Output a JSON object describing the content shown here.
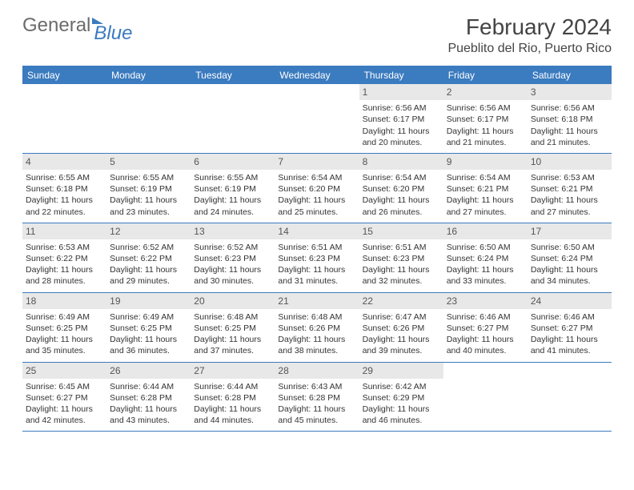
{
  "logo": {
    "part1": "General",
    "part2": "Blue"
  },
  "title": "February 2024",
  "location": "Pueblito del Rio, Puerto Rico",
  "colors": {
    "accent": "#3b7bbf",
    "daynum_bg": "#e8e8e8",
    "text": "#333333"
  },
  "weekdays": [
    "Sunday",
    "Monday",
    "Tuesday",
    "Wednesday",
    "Thursday",
    "Friday",
    "Saturday"
  ],
  "weeks": [
    [
      null,
      null,
      null,
      null,
      {
        "n": "1",
        "sunrise": "Sunrise: 6:56 AM",
        "sunset": "Sunset: 6:17 PM",
        "d1": "Daylight: 11 hours",
        "d2": "and 20 minutes."
      },
      {
        "n": "2",
        "sunrise": "Sunrise: 6:56 AM",
        "sunset": "Sunset: 6:17 PM",
        "d1": "Daylight: 11 hours",
        "d2": "and 21 minutes."
      },
      {
        "n": "3",
        "sunrise": "Sunrise: 6:56 AM",
        "sunset": "Sunset: 6:18 PM",
        "d1": "Daylight: 11 hours",
        "d2": "and 21 minutes."
      }
    ],
    [
      {
        "n": "4",
        "sunrise": "Sunrise: 6:55 AM",
        "sunset": "Sunset: 6:18 PM",
        "d1": "Daylight: 11 hours",
        "d2": "and 22 minutes."
      },
      {
        "n": "5",
        "sunrise": "Sunrise: 6:55 AM",
        "sunset": "Sunset: 6:19 PM",
        "d1": "Daylight: 11 hours",
        "d2": "and 23 minutes."
      },
      {
        "n": "6",
        "sunrise": "Sunrise: 6:55 AM",
        "sunset": "Sunset: 6:19 PM",
        "d1": "Daylight: 11 hours",
        "d2": "and 24 minutes."
      },
      {
        "n": "7",
        "sunrise": "Sunrise: 6:54 AM",
        "sunset": "Sunset: 6:20 PM",
        "d1": "Daylight: 11 hours",
        "d2": "and 25 minutes."
      },
      {
        "n": "8",
        "sunrise": "Sunrise: 6:54 AM",
        "sunset": "Sunset: 6:20 PM",
        "d1": "Daylight: 11 hours",
        "d2": "and 26 minutes."
      },
      {
        "n": "9",
        "sunrise": "Sunrise: 6:54 AM",
        "sunset": "Sunset: 6:21 PM",
        "d1": "Daylight: 11 hours",
        "d2": "and 27 minutes."
      },
      {
        "n": "10",
        "sunrise": "Sunrise: 6:53 AM",
        "sunset": "Sunset: 6:21 PM",
        "d1": "Daylight: 11 hours",
        "d2": "and 27 minutes."
      }
    ],
    [
      {
        "n": "11",
        "sunrise": "Sunrise: 6:53 AM",
        "sunset": "Sunset: 6:22 PM",
        "d1": "Daylight: 11 hours",
        "d2": "and 28 minutes."
      },
      {
        "n": "12",
        "sunrise": "Sunrise: 6:52 AM",
        "sunset": "Sunset: 6:22 PM",
        "d1": "Daylight: 11 hours",
        "d2": "and 29 minutes."
      },
      {
        "n": "13",
        "sunrise": "Sunrise: 6:52 AM",
        "sunset": "Sunset: 6:23 PM",
        "d1": "Daylight: 11 hours",
        "d2": "and 30 minutes."
      },
      {
        "n": "14",
        "sunrise": "Sunrise: 6:51 AM",
        "sunset": "Sunset: 6:23 PM",
        "d1": "Daylight: 11 hours",
        "d2": "and 31 minutes."
      },
      {
        "n": "15",
        "sunrise": "Sunrise: 6:51 AM",
        "sunset": "Sunset: 6:23 PM",
        "d1": "Daylight: 11 hours",
        "d2": "and 32 minutes."
      },
      {
        "n": "16",
        "sunrise": "Sunrise: 6:50 AM",
        "sunset": "Sunset: 6:24 PM",
        "d1": "Daylight: 11 hours",
        "d2": "and 33 minutes."
      },
      {
        "n": "17",
        "sunrise": "Sunrise: 6:50 AM",
        "sunset": "Sunset: 6:24 PM",
        "d1": "Daylight: 11 hours",
        "d2": "and 34 minutes."
      }
    ],
    [
      {
        "n": "18",
        "sunrise": "Sunrise: 6:49 AM",
        "sunset": "Sunset: 6:25 PM",
        "d1": "Daylight: 11 hours",
        "d2": "and 35 minutes."
      },
      {
        "n": "19",
        "sunrise": "Sunrise: 6:49 AM",
        "sunset": "Sunset: 6:25 PM",
        "d1": "Daylight: 11 hours",
        "d2": "and 36 minutes."
      },
      {
        "n": "20",
        "sunrise": "Sunrise: 6:48 AM",
        "sunset": "Sunset: 6:25 PM",
        "d1": "Daylight: 11 hours",
        "d2": "and 37 minutes."
      },
      {
        "n": "21",
        "sunrise": "Sunrise: 6:48 AM",
        "sunset": "Sunset: 6:26 PM",
        "d1": "Daylight: 11 hours",
        "d2": "and 38 minutes."
      },
      {
        "n": "22",
        "sunrise": "Sunrise: 6:47 AM",
        "sunset": "Sunset: 6:26 PM",
        "d1": "Daylight: 11 hours",
        "d2": "and 39 minutes."
      },
      {
        "n": "23",
        "sunrise": "Sunrise: 6:46 AM",
        "sunset": "Sunset: 6:27 PM",
        "d1": "Daylight: 11 hours",
        "d2": "and 40 minutes."
      },
      {
        "n": "24",
        "sunrise": "Sunrise: 6:46 AM",
        "sunset": "Sunset: 6:27 PM",
        "d1": "Daylight: 11 hours",
        "d2": "and 41 minutes."
      }
    ],
    [
      {
        "n": "25",
        "sunrise": "Sunrise: 6:45 AM",
        "sunset": "Sunset: 6:27 PM",
        "d1": "Daylight: 11 hours",
        "d2": "and 42 minutes."
      },
      {
        "n": "26",
        "sunrise": "Sunrise: 6:44 AM",
        "sunset": "Sunset: 6:28 PM",
        "d1": "Daylight: 11 hours",
        "d2": "and 43 minutes."
      },
      {
        "n": "27",
        "sunrise": "Sunrise: 6:44 AM",
        "sunset": "Sunset: 6:28 PM",
        "d1": "Daylight: 11 hours",
        "d2": "and 44 minutes."
      },
      {
        "n": "28",
        "sunrise": "Sunrise: 6:43 AM",
        "sunset": "Sunset: 6:28 PM",
        "d1": "Daylight: 11 hours",
        "d2": "and 45 minutes."
      },
      {
        "n": "29",
        "sunrise": "Sunrise: 6:42 AM",
        "sunset": "Sunset: 6:29 PM",
        "d1": "Daylight: 11 hours",
        "d2": "and 46 minutes."
      },
      null,
      null
    ]
  ]
}
